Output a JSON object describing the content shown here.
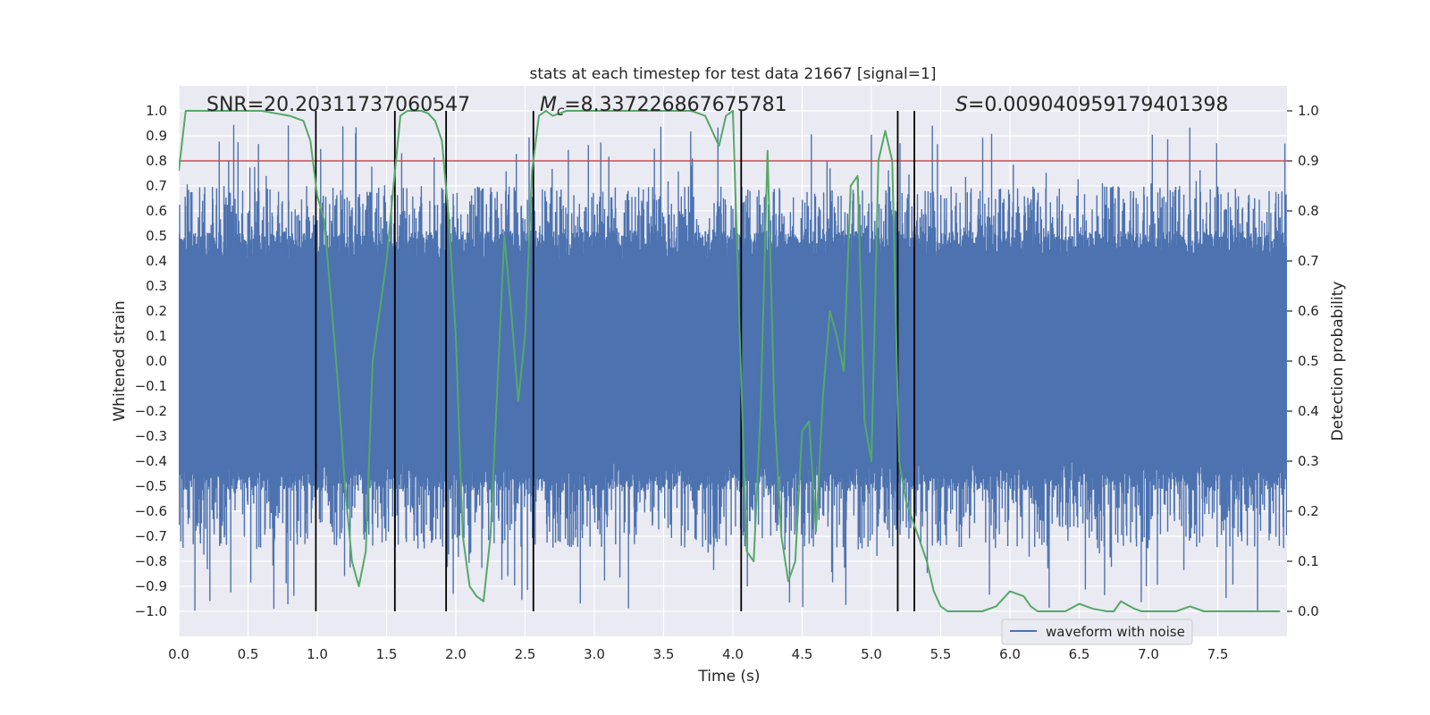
{
  "chart_data": {
    "type": "line",
    "title": "stats at each timestep for test data 21667 [signal=1]",
    "xlabel": "Time (s)",
    "ylabel": "Whitened strain",
    "y2label": "Detection probability",
    "xlim": [
      0.0,
      8.0
    ],
    "ylim": [
      -1.1,
      1.1
    ],
    "y2lim": [
      -0.05,
      1.05
    ],
    "xticks": [
      0.0,
      0.5,
      1.0,
      1.5,
      2.0,
      2.5,
      3.0,
      3.5,
      4.0,
      4.5,
      5.0,
      5.5,
      6.0,
      6.5,
      7.0,
      7.5
    ],
    "xtick_labels": [
      "0.0",
      "0.5",
      "1.0",
      "1.5",
      "2.0",
      "2.5",
      "3.0",
      "3.5",
      "4.0",
      "4.5",
      "5.0",
      "5.5",
      "6.0",
      "6.5",
      "7.0",
      "7.5"
    ],
    "yticks": [
      1.0,
      0.9,
      0.8,
      0.7,
      0.6,
      0.5,
      0.4,
      0.3,
      0.2,
      0.1,
      0.0,
      -0.1,
      -0.2,
      -0.3,
      -0.4,
      -0.5,
      -0.6,
      -0.7,
      -0.8,
      -0.9,
      -1.0
    ],
    "ytick_labels": [
      "1.0",
      "0.9",
      "0.8",
      "0.7",
      "0.6",
      "0.5",
      "0.4",
      "0.3",
      "0.2",
      "0.1",
      "0.0",
      "−0.1",
      "−0.2",
      "−0.3",
      "−0.4",
      "−0.5",
      "−0.6",
      "−0.7",
      "−0.8",
      "−0.9",
      "−1.0"
    ],
    "y2ticks": [
      1.0,
      0.9,
      0.8,
      0.7,
      0.6,
      0.5,
      0.4,
      0.3,
      0.2,
      0.1,
      0.0
    ],
    "y2tick_labels": [
      "1.0",
      "0.9",
      "0.8",
      "0.7",
      "0.6",
      "0.5",
      "0.4",
      "0.3",
      "0.2",
      "0.1",
      "0.0"
    ],
    "annotations": {
      "snr": "SNR=20.20311737060547",
      "mc_symbol": "M",
      "mc_subscript": "c",
      "mc_value": "=8.337226867675781",
      "s_symbol": "S",
      "s_value": "=0.009040959179401398"
    },
    "threshold": {
      "value": 0.9,
      "axis": "y2",
      "color": "#c44e52"
    },
    "markers": [
      0.99,
      1.56,
      1.93,
      2.56,
      4.06,
      5.19,
      5.31
    ],
    "legend": {
      "label": "waveform with noise",
      "placement": "lower-right"
    },
    "series": [
      {
        "name": "waveform with noise",
        "axis": "y",
        "color": "#4c72b0",
        "kind": "noise",
        "core_band": [
          -0.4,
          0.4
        ],
        "envelope_estimate": [
          -0.75,
          0.7
        ]
      },
      {
        "name": "Detection probability",
        "axis": "y2",
        "color": "#55a868",
        "x": [
          0.0,
          0.05,
          0.1,
          0.2,
          0.3,
          0.4,
          0.5,
          0.6,
          0.7,
          0.8,
          0.9,
          0.95,
          1.0,
          1.05,
          1.1,
          1.15,
          1.2,
          1.25,
          1.3,
          1.35,
          1.4,
          1.45,
          1.5,
          1.55,
          1.6,
          1.65,
          1.7,
          1.75,
          1.8,
          1.85,
          1.9,
          1.95,
          2.0,
          2.05,
          2.1,
          2.15,
          2.2,
          2.25,
          2.3,
          2.35,
          2.4,
          2.45,
          2.5,
          2.55,
          2.6,
          2.65,
          2.7,
          2.8,
          2.9,
          3.0,
          3.5,
          3.7,
          3.8,
          3.85,
          3.9,
          3.95,
          4.0,
          4.05,
          4.1,
          4.15,
          4.2,
          4.25,
          4.3,
          4.35,
          4.4,
          4.45,
          4.5,
          4.55,
          4.6,
          4.65,
          4.7,
          4.75,
          4.8,
          4.85,
          4.9,
          4.95,
          5.0,
          5.05,
          5.1,
          5.15,
          5.2,
          5.25,
          5.3,
          5.35,
          5.4,
          5.45,
          5.5,
          5.55,
          5.6,
          5.65,
          5.7,
          5.75,
          5.8,
          5.9,
          6.0,
          6.1,
          6.15,
          6.2,
          6.25,
          6.3,
          6.35,
          6.4,
          6.5,
          6.6,
          6.7,
          6.75,
          6.8,
          6.9,
          6.95,
          7.0,
          7.05,
          7.1,
          7.2,
          7.3,
          7.4,
          7.5,
          7.6,
          7.8,
          7.95
        ],
        "values": [
          0.88,
          1.0,
          1.0,
          1.0,
          1.0,
          1.0,
          1.0,
          1.0,
          0.995,
          0.99,
          0.98,
          0.94,
          0.83,
          0.78,
          0.62,
          0.45,
          0.25,
          0.1,
          0.05,
          0.12,
          0.5,
          0.6,
          0.7,
          0.85,
          0.99,
          1.0,
          1.0,
          1.0,
          0.995,
          0.98,
          0.94,
          0.78,
          0.55,
          0.15,
          0.05,
          0.03,
          0.02,
          0.15,
          0.45,
          0.75,
          0.6,
          0.42,
          0.55,
          0.88,
          0.99,
          1.0,
          0.99,
          1.0,
          1.0,
          1.0,
          1.0,
          1.0,
          0.99,
          0.96,
          0.93,
          0.99,
          1.0,
          0.55,
          0.12,
          0.1,
          0.4,
          0.92,
          0.4,
          0.15,
          0.06,
          0.1,
          0.36,
          0.38,
          0.16,
          0.43,
          0.6,
          0.55,
          0.48,
          0.85,
          0.87,
          0.38,
          0.3,
          0.9,
          0.96,
          0.9,
          0.3,
          0.22,
          0.18,
          0.14,
          0.1,
          0.04,
          0.01,
          0.0,
          0.0,
          0.0,
          0.0,
          0.0,
          0.0,
          0.01,
          0.04,
          0.03,
          0.01,
          0.0,
          0.0,
          0.0,
          0.0,
          0.0,
          0.015,
          0.005,
          0.0,
          0.0,
          0.02,
          0.005,
          0.0,
          0.0,
          0.0,
          0.0,
          0.0,
          0.01,
          0.0,
          0.0,
          0.0,
          0.0,
          0.0
        ]
      }
    ]
  }
}
